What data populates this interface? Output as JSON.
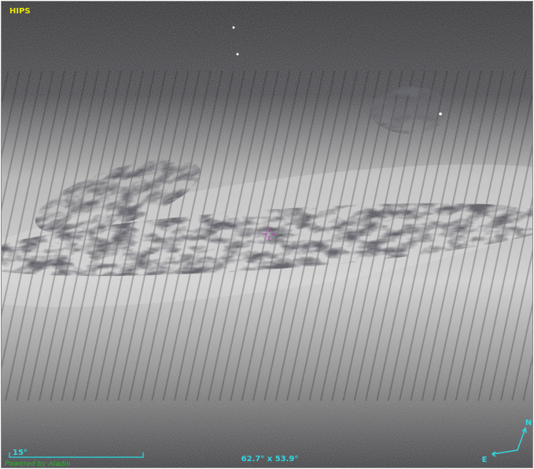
{
  "view": {
    "survey_label": "HIPS",
    "scale_label": "15°",
    "fov_label": "62.7° x 53.9°",
    "credit": "Powered by Aladin",
    "compass": {
      "north": "N",
      "east": "E"
    }
  }
}
